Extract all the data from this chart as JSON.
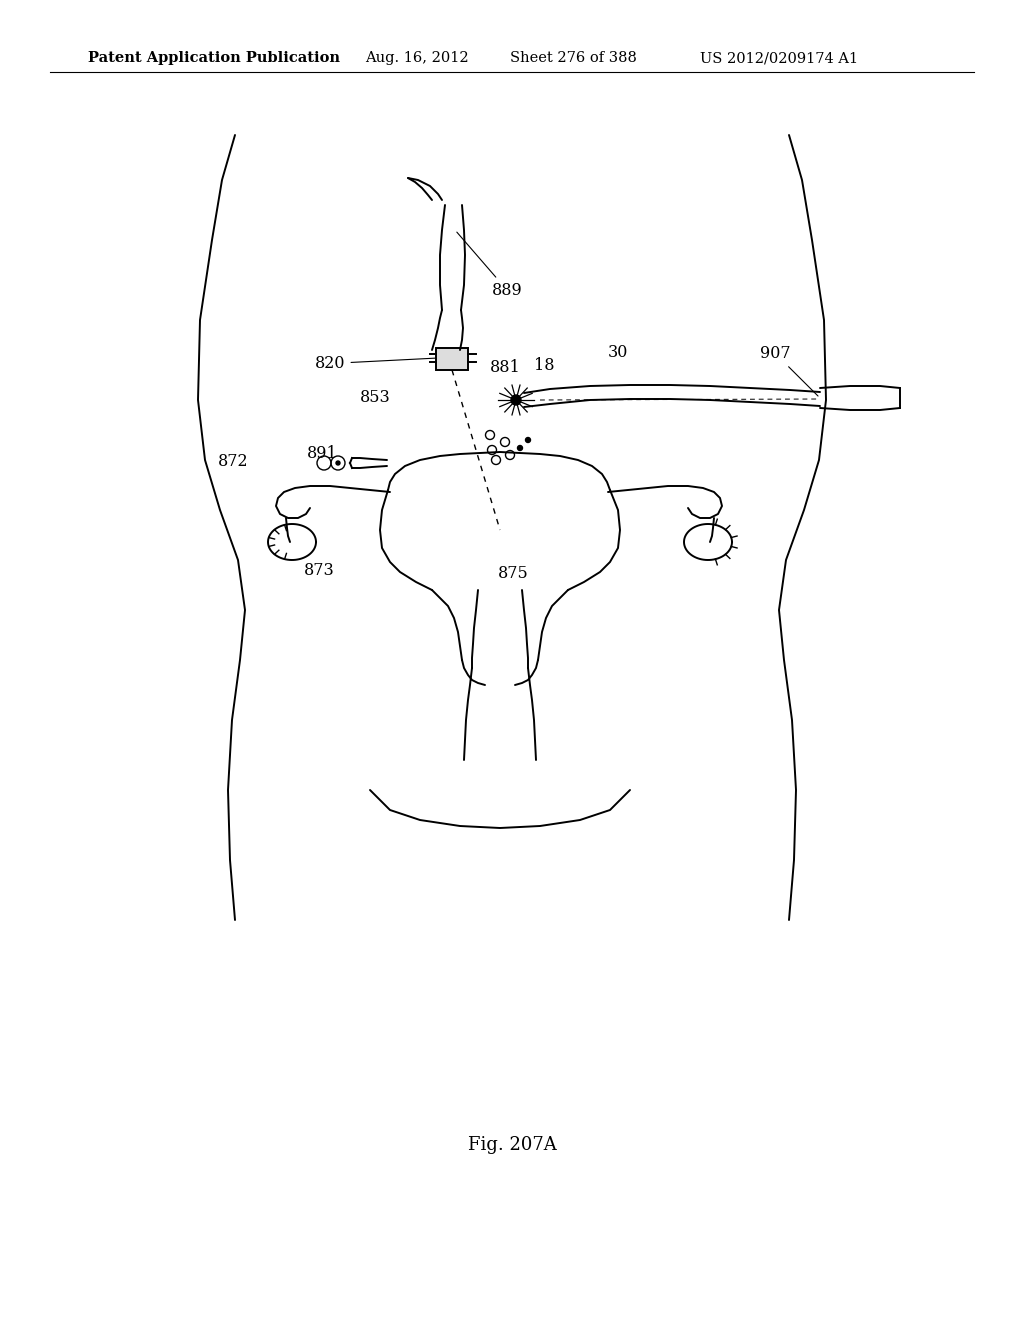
{
  "title": "Patent Application Publication",
  "date": "Aug. 16, 2012",
  "sheet": "Sheet 276 of 388",
  "patent": "US 2012/0209174 A1",
  "fig_label": "Fig. 207A",
  "header_fontsize": 10.5,
  "fig_fontsize": 13,
  "bg_color": "#ffffff",
  "line_color": "#000000",
  "lw": 1.4
}
